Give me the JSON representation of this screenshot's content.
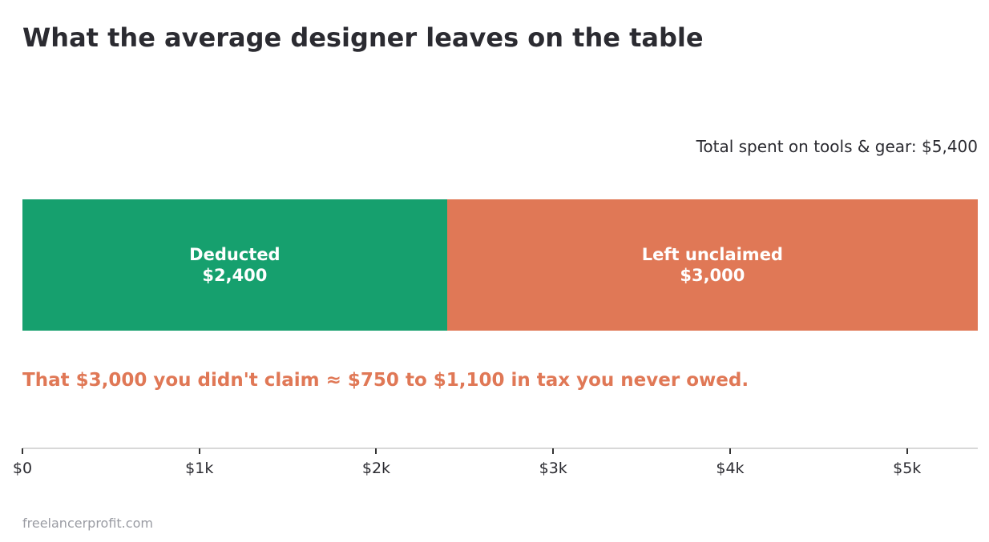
{
  "title": "What the average designer leaves on the table",
  "total_note": "Total spent on tools & gear: $5,400",
  "callout": "That $3,000 you didn't claim  ≈  $750 to $1,100 in tax you never owed.",
  "source": "freelancerprofit.com",
  "colors": {
    "deducted": "#16a06e",
    "unclaimed": "#e07856",
    "callout": "#e07856"
  },
  "chart_data": {
    "type": "bar",
    "orientation": "horizontal-stacked",
    "title": "What the average designer leaves on the table",
    "xlim": [
      0,
      5400
    ],
    "xticks": [
      0,
      1000,
      2000,
      3000,
      4000,
      5000
    ],
    "xtick_labels": [
      "$0",
      "$1k",
      "$2k",
      "$3k",
      "$4k",
      "$5k"
    ],
    "segments": [
      {
        "name": "Deducted",
        "value": 2400,
        "label_value": "$2,400",
        "color": "#16a06e"
      },
      {
        "name": "Left unclaimed",
        "value": 3000,
        "label_value": "$3,000",
        "color": "#e07856"
      }
    ],
    "total": 5400
  }
}
